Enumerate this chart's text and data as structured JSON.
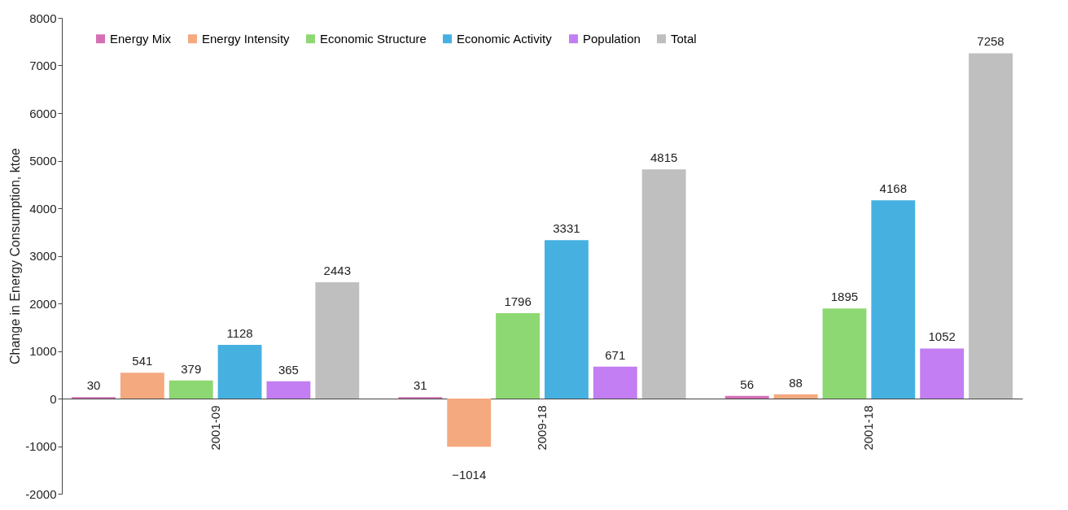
{
  "chart_data": {
    "type": "bar",
    "ylabel": "Change in Energy Consumption, ktoe",
    "categories": [
      "2001-09",
      "2009-18",
      "2001-18"
    ],
    "series": [
      {
        "name": "Energy Mix",
        "color": "#d56fb4",
        "values": [
          30,
          31,
          56
        ]
      },
      {
        "name": "Energy Intensity",
        "color": "#f4a97f",
        "values": [
          541,
          -1014,
          88
        ]
      },
      {
        "name": "Economic Structure",
        "color": "#8ed873",
        "values": [
          379,
          1796,
          1895
        ]
      },
      {
        "name": "Economic Activity",
        "color": "#46b1e1",
        "values": [
          1128,
          3331,
          4168
        ]
      },
      {
        "name": "Population",
        "color": "#c27ef2",
        "values": [
          365,
          671,
          1052
        ]
      },
      {
        "name": "Total",
        "color": "#bfbfbf",
        "values": [
          2443,
          4815,
          7258
        ]
      }
    ],
    "ylim": [
      -2000,
      8000
    ],
    "yticks": [
      -2000,
      -1000,
      0,
      1000,
      2000,
      3000,
      4000,
      5000,
      6000,
      7000,
      8000
    ],
    "grid": false,
    "legend": "top",
    "data_labels": true
  }
}
